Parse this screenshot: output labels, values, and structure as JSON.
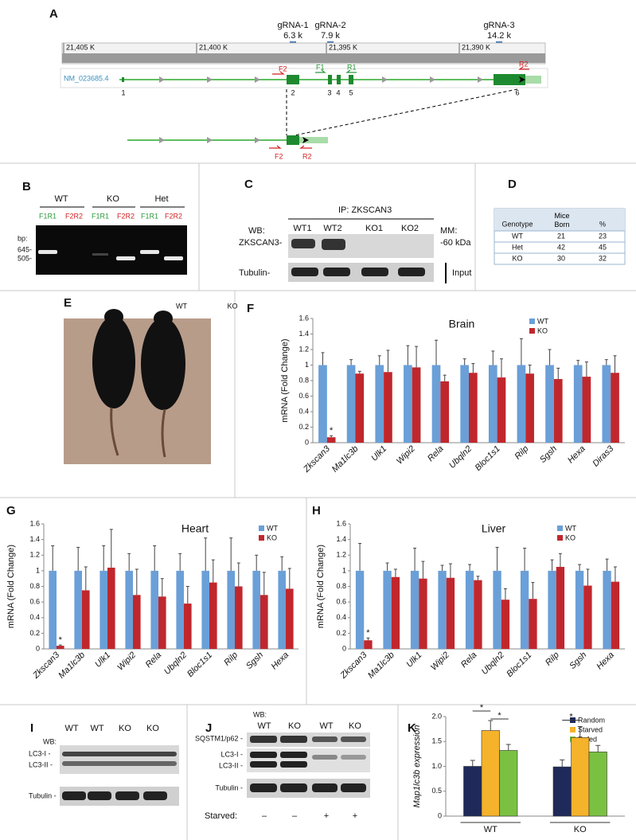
{
  "panel_a": {
    "label": "A",
    "grnas": [
      {
        "name": "gRNA-1",
        "pos": "6.3 k"
      },
      {
        "name": "gRNA-2",
        "pos": "7.9 k"
      },
      {
        "name": "gRNA-3",
        "pos": "14.2 k"
      }
    ],
    "scale": [
      "21,405 K",
      "21,400 K",
      "21,395 K",
      "21,390 K"
    ],
    "transcript": "NM_023685.4",
    "exons": [
      1,
      2,
      3,
      4,
      5,
      6
    ],
    "primers": [
      "F2",
      "F1",
      "R1",
      "R2"
    ],
    "inset_primers": [
      "F2",
      "R2"
    ]
  },
  "panel_b": {
    "label": "B",
    "groups": [
      "WT",
      "KO",
      "Het"
    ],
    "lanes": [
      "F1R1",
      "F2R2",
      "F1R1",
      "F2R2",
      "F1R1",
      "F2R2"
    ],
    "size_title": "bp:",
    "sizes": [
      "645-",
      "505-"
    ]
  },
  "panel_c": {
    "label": "C",
    "ip": "IP:  ZKSCAN3",
    "wb": "WB:",
    "target": "ZKSCAN3-",
    "lanes": [
      "WT1",
      "WT2",
      "KO1",
      "KO2"
    ],
    "mm": "MM:",
    "mm_size": "-60 kDa",
    "loading": "Tubulin-",
    "input": "Input"
  },
  "panel_d": {
    "label": "D",
    "table": {
      "header": [
        "Genotype",
        "Mice Born",
        "%"
      ],
      "rows": [
        [
          "WT",
          21,
          23
        ],
        [
          "Het",
          42,
          45
        ],
        [
          "KO",
          30,
          32
        ]
      ]
    }
  },
  "panel_e": {
    "label": "E",
    "mice": [
      "WT",
      "KO"
    ]
  },
  "panel_i": {
    "label": "I",
    "lanes": [
      "WT",
      "WT",
      "KO",
      "KO"
    ],
    "wb": "WB:",
    "bands": [
      "LC3-I -",
      "LC3-II -"
    ],
    "loading": "Tubulin -"
  },
  "panel_j": {
    "label": "J",
    "wb": "WB:",
    "lanes": [
      "WT",
      "KO",
      "WT",
      "KO"
    ],
    "bands": [
      "SQSTM1/p62 -",
      "LC3-I -",
      "LC3-II -",
      "Tubulin -"
    ],
    "starved_label": "Starved:",
    "starved": [
      "–",
      "–",
      "+",
      "+"
    ]
  },
  "chart_data": [
    {
      "type": "bar",
      "label": "F",
      "title": "Brain",
      "ylabel": "mRNA (Fold Change)",
      "categories": [
        "Zkscan3",
        "Ma1lc3b",
        "Ulk1",
        "Wipi2",
        "Rela",
        "Ubqln2",
        "Bloc1s1",
        "Rilp",
        "Sgsh",
        "Hexa",
        "Diras3"
      ],
      "series": [
        {
          "name": "WT",
          "color": "#6a9fd8",
          "values": [
            1,
            1,
            1,
            1,
            1,
            1,
            1,
            1,
            1,
            1,
            1
          ],
          "errors": [
            0.16,
            0.07,
            0.12,
            0.25,
            0.32,
            0.08,
            0.18,
            0.34,
            0.2,
            0.06,
            0.07
          ]
        },
        {
          "name": "KO",
          "color": "#c0272d",
          "values": [
            0.07,
            0.89,
            0.91,
            0.97,
            0.79,
            0.9,
            0.84,
            0.89,
            0.82,
            0.85,
            0.9
          ],
          "errors": [
            0.02,
            0.03,
            0.28,
            0.27,
            0.08,
            0.12,
            0.24,
            0.11,
            0.14,
            0.19,
            0.22
          ]
        }
      ],
      "annotations": [
        "*"
      ],
      "ylim": [
        0,
        1.6
      ],
      "yticks": [
        0,
        0.2,
        0.4,
        0.6,
        0.8,
        1,
        1.2,
        1.4,
        1.6
      ]
    },
    {
      "type": "bar",
      "label": "G",
      "title": "Heart",
      "ylabel": "mRNA (Fold Change)",
      "categories": [
        "Zkscan3",
        "Ma1lc3b",
        "Ulk1",
        "Wipi2",
        "Rela",
        "Ubqln2",
        "Bloc1s1",
        "Rilp",
        "Sgsh",
        "Hexa"
      ],
      "series": [
        {
          "name": "WT",
          "color": "#6a9fd8",
          "values": [
            1,
            1,
            1,
            1,
            1,
            1,
            1,
            1,
            1,
            1
          ],
          "errors": [
            0.32,
            0.3,
            0.32,
            0.22,
            0.32,
            0.22,
            0.42,
            0.42,
            0.2,
            0.18
          ]
        },
        {
          "name": "KO",
          "color": "#c0272d",
          "values": [
            0.04,
            0.75,
            1.04,
            0.69,
            0.67,
            0.58,
            0.85,
            0.8,
            0.69,
            0.77
          ],
          "errors": [
            0.01,
            0.3,
            0.49,
            0.33,
            0.23,
            0.22,
            0.29,
            0.3,
            0.29,
            0.26
          ]
        }
      ],
      "annotations": [
        "*"
      ],
      "ylim": [
        0,
        1.6
      ],
      "yticks": [
        0,
        0.2,
        0.4,
        0.6,
        0.8,
        1,
        1.2,
        1.4,
        1.6
      ]
    },
    {
      "type": "bar",
      "label": "H",
      "title": "Liver",
      "ylabel": "mRNA (Fold Change)",
      "categories": [
        "Zkscan3",
        "Ma1lc3b",
        "Ulk1",
        "Wipi2",
        "Rela",
        "Ubqln2",
        "Bloc1s1",
        "Rilp",
        "Sgsh",
        "Hexa"
      ],
      "series": [
        {
          "name": "WT",
          "color": "#6a9fd8",
          "values": [
            1,
            1,
            1,
            1,
            1,
            1,
            1,
            1,
            1,
            1
          ],
          "errors": [
            0.35,
            0.1,
            0.29,
            0.07,
            0.08,
            0.3,
            0.29,
            0.14,
            0.08,
            0.15
          ]
        },
        {
          "name": "KO",
          "color": "#c0272d",
          "values": [
            0.11,
            0.92,
            0.9,
            0.91,
            0.88,
            0.63,
            0.64,
            1.05,
            0.81,
            0.86
          ],
          "errors": [
            0.03,
            0.1,
            0.22,
            0.18,
            0.05,
            0.14,
            0.21,
            0.17,
            0.21,
            0.19
          ]
        }
      ],
      "annotations": [
        "*"
      ],
      "ylim": [
        0,
        1.6
      ],
      "yticks": [
        0,
        0.2,
        0.4,
        0.6,
        0.8,
        1,
        1.2,
        1.4,
        1.6
      ]
    },
    {
      "type": "grouped_bar",
      "label": "K",
      "ylabel": "Map1lc3b expression",
      "categories": [
        "WT",
        "KO"
      ],
      "series": [
        {
          "name": "Random",
          "color": "#1f2a5a",
          "values": [
            1.0,
            0.99
          ],
          "errors": [
            0.12,
            0.14
          ]
        },
        {
          "name": "Starved",
          "color": "#f5b32b",
          "values": [
            1.72,
            1.58
          ],
          "errors": [
            0.2,
            0.22
          ]
        },
        {
          "name": "Refed",
          "color": "#7ac142",
          "values": [
            1.32,
            1.29
          ],
          "errors": [
            0.12,
            0.13
          ]
        }
      ],
      "annotations": [
        "*",
        "*",
        "*"
      ],
      "ylim": [
        0,
        2.0
      ],
      "yticks": [
        0,
        0.5,
        {
          "value": 1,
          "label": "1.0"
        },
        1.5,
        {
          "value": 2,
          "label": "2.0"
        }
      ]
    }
  ]
}
